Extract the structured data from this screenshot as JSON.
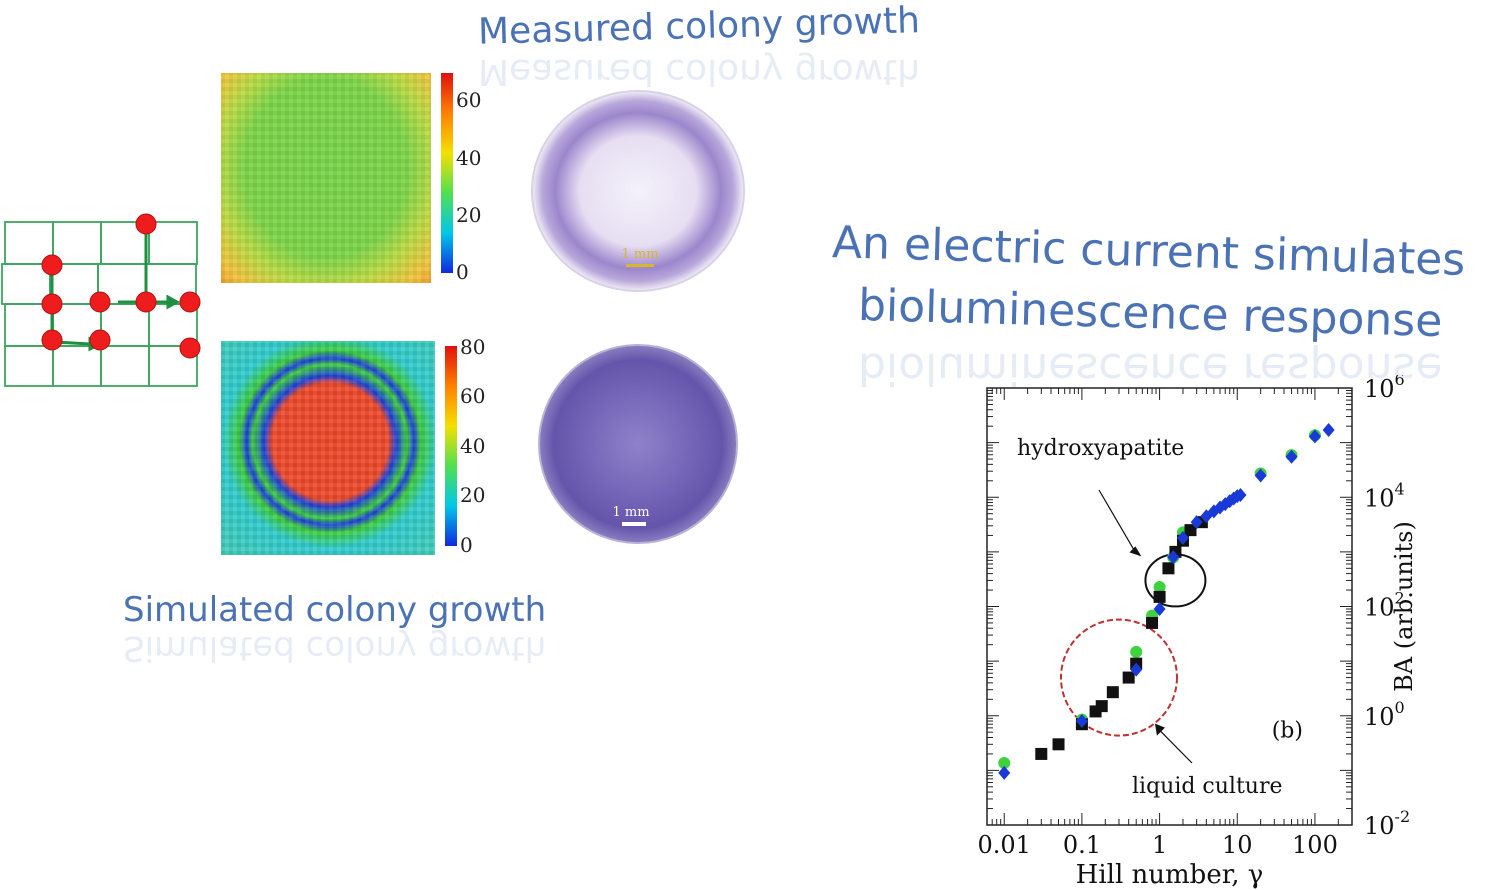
{
  "titles": {
    "measured": "Measured colony growth",
    "simulated": "Simulated colony growth",
    "current_line1": "An electric current simulates",
    "current_line2": "bioluminescence response"
  },
  "heatmap_top": {
    "colorbar_ticks": [
      "60",
      "40",
      "20",
      "0"
    ],
    "colors": {
      "edge": "#f5c542",
      "center": "#7dd64a"
    }
  },
  "heatmap_bottom": {
    "colorbar_ticks": [
      "80",
      "60",
      "40",
      "20",
      "0"
    ],
    "colors": {
      "core": "#f0452b",
      "ring_blue": "#1a3fe0",
      "ring_green": "#3fd23f",
      "outer": "#30d0d0"
    }
  },
  "petri": {
    "scale_top": "1 mm",
    "scale_bottom": "1 mm"
  },
  "chart_data": {
    "type": "scatter",
    "xlabel": "Hill number, γ",
    "ylabel": "BA (arb.units)",
    "x_scale": "log",
    "y_scale": "log",
    "xlim": [
      0.006,
      300
    ],
    "ylim": [
      0.01,
      1000000
    ],
    "x_ticks": [
      {
        "v": 0.01,
        "label": "0.01"
      },
      {
        "v": 0.1,
        "label": "0.1"
      },
      {
        "v": 1,
        "label": "1"
      },
      {
        "v": 10,
        "label": "10"
      },
      {
        "v": 100,
        "label": "100"
      }
    ],
    "y_ticks": [
      {
        "v": 0.01,
        "base": "10",
        "exp": "-2"
      },
      {
        "v": 1,
        "base": "10",
        "exp": "0"
      },
      {
        "v": 100,
        "base": "10",
        "exp": "2"
      },
      {
        "v": 10000,
        "base": "10",
        "exp": "4"
      },
      {
        "v": 1000000,
        "base": "10",
        "exp": "6"
      }
    ],
    "panel_label": "(b)",
    "annotations": [
      {
        "text": "hydroxyapatite",
        "circle_center": [
          1.6,
          300
        ],
        "color": "#111111"
      },
      {
        "text": "liquid culture",
        "circle_center": [
          0.3,
          5
        ],
        "color": "#c03030"
      }
    ],
    "series": [
      {
        "marker": "square",
        "color": "#111111",
        "points": [
          [
            0.03,
            0.2
          ],
          [
            0.05,
            0.3
          ],
          [
            0.1,
            0.7
          ],
          [
            0.15,
            1.2
          ],
          [
            0.18,
            1.5
          ],
          [
            0.25,
            2.7
          ],
          [
            0.4,
            5
          ],
          [
            0.5,
            9
          ],
          [
            0.8,
            50
          ],
          [
            1.0,
            150
          ],
          [
            1.3,
            500
          ],
          [
            1.6,
            1000
          ],
          [
            2.0,
            1600
          ],
          [
            2.5,
            2500
          ],
          [
            3.5,
            3500
          ]
        ]
      },
      {
        "marker": "diamond",
        "color": "#1a3ad8",
        "points": [
          [
            0.01,
            0.09
          ],
          [
            0.1,
            0.8
          ],
          [
            0.5,
            7
          ],
          [
            1.0,
            90
          ],
          [
            1.5,
            800
          ],
          [
            2.0,
            1800
          ],
          [
            3,
            3500
          ],
          [
            4,
            4500
          ],
          [
            5,
            5500
          ],
          [
            6,
            6500
          ],
          [
            7,
            7500
          ],
          [
            8,
            8500
          ],
          [
            9,
            9500
          ],
          [
            10,
            10500
          ],
          [
            11,
            11000
          ],
          [
            20,
            25000
          ],
          [
            50,
            55000
          ],
          [
            100,
            130000
          ],
          [
            150,
            170000
          ]
        ]
      },
      {
        "marker": "circle",
        "color": "#3fd23f",
        "points": [
          [
            0.01,
            0.12
          ],
          [
            0.1,
            0.75
          ],
          [
            0.5,
            13
          ],
          [
            0.8,
            60
          ],
          [
            1.0,
            200
          ],
          [
            1.5,
            700
          ],
          [
            2.0,
            2000
          ],
          [
            20,
            24000
          ],
          [
            50,
            52000
          ],
          [
            100,
            120000
          ]
        ]
      }
    ]
  }
}
